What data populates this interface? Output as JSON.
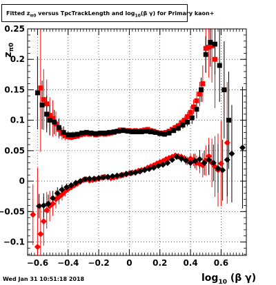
{
  "header": {
    "title_parts": [
      "Fitted z",
      "π0",
      " versus TpcTrackLength and log",
      "10",
      "(β γ) for Primary kaon+"
    ],
    "date": "Wed Jan 31 10:51:18 2018"
  },
  "chart_data": {
    "type": "scatter",
    "title": "Fitted zπ0 versus TpcTrackLength and log10(βγ) for Primary kaon+",
    "xlabel": "log10 (β γ)",
    "ylabel": "zπ0",
    "xlim": [
      -0.665,
      0.765
    ],
    "ylim": [
      -0.122,
      0.25
    ],
    "xticks": [
      -0.6,
      -0.4,
      -0.2,
      0,
      0.2,
      0.4,
      0.6
    ],
    "xtick_labels": [
      "−0.6",
      "−0.4",
      "−0.2",
      "0",
      "0.2",
      "0.4",
      "0.6"
    ],
    "yticks": [
      -0.1,
      -0.05,
      0,
      0.05,
      0.1,
      0.15,
      0.2,
      0.25
    ],
    "ytick_labels": [
      "−0.1",
      "−0.05",
      "0",
      "0.05",
      "0.1",
      "0.15",
      "0.2",
      "0.25"
    ],
    "grid": true,
    "colors": {
      "red": "#ff0000",
      "black": "#000000"
    },
    "series": [
      {
        "color": "red",
        "marker": "square",
        "points": [
          [
            -0.58,
            0.153,
            0.105
          ],
          [
            -0.56,
            0.134,
            0.05
          ],
          [
            -0.54,
            0.127,
            0.04
          ],
          [
            -0.52,
            0.108,
            0.03
          ],
          [
            -0.5,
            0.103,
            0.03
          ],
          [
            -0.48,
            0.094,
            0.02
          ],
          [
            -0.46,
            0.085,
            0.015
          ],
          [
            -0.44,
            0.078,
            0.01
          ],
          [
            -0.42,
            0.075,
            0.008
          ],
          [
            -0.4,
            0.073,
            0.006
          ],
          [
            -0.38,
            0.072,
            0.005
          ],
          [
            -0.36,
            0.073,
            0.004
          ],
          [
            -0.34,
            0.074,
            0.004
          ],
          [
            -0.32,
            0.076,
            0.004
          ],
          [
            -0.3,
            0.077,
            0.003
          ],
          [
            -0.28,
            0.078,
            0.003
          ],
          [
            -0.26,
            0.077,
            0.003
          ],
          [
            -0.24,
            0.078,
            0.003
          ],
          [
            -0.22,
            0.076,
            0.003
          ],
          [
            -0.2,
            0.077,
            0.003
          ],
          [
            -0.18,
            0.078,
            0.003
          ],
          [
            -0.16,
            0.077,
            0.003
          ],
          [
            -0.14,
            0.078,
            0.003
          ],
          [
            -0.12,
            0.079,
            0.003
          ],
          [
            -0.1,
            0.08,
            0.003
          ],
          [
            -0.08,
            0.082,
            0.003
          ],
          [
            -0.06,
            0.084,
            0.003
          ],
          [
            -0.04,
            0.084,
            0.003
          ],
          [
            -0.02,
            0.083,
            0.003
          ],
          [
            0.0,
            0.083,
            0.003
          ],
          [
            0.02,
            0.082,
            0.003
          ],
          [
            0.04,
            0.083,
            0.003
          ],
          [
            0.06,
            0.082,
            0.003
          ],
          [
            0.08,
            0.083,
            0.003
          ],
          [
            0.1,
            0.084,
            0.003
          ],
          [
            0.12,
            0.085,
            0.003
          ],
          [
            0.14,
            0.083,
            0.003
          ],
          [
            0.16,
            0.082,
            0.003
          ],
          [
            0.18,
            0.08,
            0.003
          ],
          [
            0.2,
            0.079,
            0.003
          ],
          [
            0.22,
            0.079,
            0.003
          ],
          [
            0.24,
            0.08,
            0.003
          ],
          [
            0.26,
            0.082,
            0.004
          ],
          [
            0.28,
            0.085,
            0.004
          ],
          [
            0.3,
            0.088,
            0.005
          ],
          [
            0.32,
            0.091,
            0.005
          ],
          [
            0.34,
            0.096,
            0.006
          ],
          [
            0.36,
            0.1,
            0.007
          ],
          [
            0.38,
            0.106,
            0.008
          ],
          [
            0.4,
            0.113,
            0.01
          ],
          [
            0.42,
            0.122,
            0.012
          ],
          [
            0.44,
            0.132,
            0.015
          ],
          [
            0.46,
            0.143,
            0.02
          ],
          [
            0.48,
            0.16,
            0.03
          ],
          [
            0.5,
            0.218,
            0.04
          ],
          [
            0.52,
            0.22,
            0.05
          ],
          [
            0.54,
            0.222,
            0.06
          ],
          [
            0.56,
            0.2,
            0.08
          ]
        ]
      },
      {
        "color": "black",
        "marker": "square",
        "points": [
          [
            -0.6,
            0.145,
            0.06
          ],
          [
            -0.57,
            0.125,
            0.04
          ],
          [
            -0.54,
            0.11,
            0.03
          ],
          [
            -0.52,
            0.1,
            0.025
          ],
          [
            -0.49,
            0.097,
            0.02
          ],
          [
            -0.46,
            0.088,
            0.015
          ],
          [
            -0.43,
            0.08,
            0.01
          ],
          [
            -0.4,
            0.076,
            0.006
          ],
          [
            -0.37,
            0.076,
            0.005
          ],
          [
            -0.34,
            0.077,
            0.004
          ],
          [
            -0.31,
            0.079,
            0.003
          ],
          [
            -0.28,
            0.08,
            0.003
          ],
          [
            -0.25,
            0.079,
            0.003
          ],
          [
            -0.22,
            0.078,
            0.003
          ],
          [
            -0.19,
            0.079,
            0.003
          ],
          [
            -0.16,
            0.079,
            0.003
          ],
          [
            -0.13,
            0.08,
            0.003
          ],
          [
            -0.1,
            0.081,
            0.003
          ],
          [
            -0.07,
            0.082,
            0.003
          ],
          [
            -0.04,
            0.083,
            0.003
          ],
          [
            -0.01,
            0.082,
            0.003
          ],
          [
            0.02,
            0.081,
            0.003
          ],
          [
            0.05,
            0.081,
            0.003
          ],
          [
            0.08,
            0.081,
            0.003
          ],
          [
            0.11,
            0.082,
            0.003
          ],
          [
            0.14,
            0.081,
            0.003
          ],
          [
            0.17,
            0.08,
            0.003
          ],
          [
            0.2,
            0.078,
            0.003
          ],
          [
            0.23,
            0.077,
            0.003
          ],
          [
            0.26,
            0.079,
            0.004
          ],
          [
            0.29,
            0.083,
            0.004
          ],
          [
            0.32,
            0.087,
            0.005
          ],
          [
            0.35,
            0.092,
            0.006
          ],
          [
            0.38,
            0.097,
            0.007
          ],
          [
            0.41,
            0.104,
            0.01
          ],
          [
            0.44,
            0.118,
            0.015
          ],
          [
            0.47,
            0.15,
            0.02
          ],
          [
            0.5,
            0.208,
            0.03
          ],
          [
            0.53,
            0.228,
            0.04
          ],
          [
            0.56,
            0.225,
            0.05
          ],
          [
            0.59,
            0.19,
            0.06
          ],
          [
            0.62,
            0.15,
            0.08
          ],
          [
            0.65,
            0.1,
            0.08
          ]
        ]
      },
      {
        "color": "red",
        "marker": "diamond",
        "points": [
          [
            -0.63,
            -0.055,
            0.05
          ],
          [
            -0.6,
            -0.108,
            0.13
          ],
          [
            -0.58,
            -0.087,
            0.05
          ],
          [
            -0.56,
            -0.066,
            0.04
          ],
          [
            -0.54,
            -0.048,
            0.03
          ],
          [
            -0.52,
            -0.041,
            0.025
          ],
          [
            -0.5,
            -0.037,
            0.02
          ],
          [
            -0.48,
            -0.03,
            0.015
          ],
          [
            -0.46,
            -0.026,
            0.012
          ],
          [
            -0.44,
            -0.022,
            0.01
          ],
          [
            -0.42,
            -0.017,
            0.008
          ],
          [
            -0.4,
            -0.013,
            0.006
          ],
          [
            -0.38,
            -0.01,
            0.005
          ],
          [
            -0.36,
            -0.007,
            0.004
          ],
          [
            -0.34,
            -0.004,
            0.004
          ],
          [
            -0.32,
            -0.001,
            0.004
          ],
          [
            -0.3,
            0.002,
            0.003
          ],
          [
            -0.28,
            0.003,
            0.003
          ],
          [
            -0.26,
            0.001,
            0.003
          ],
          [
            -0.24,
            0.002,
            0.003
          ],
          [
            -0.22,
            0.003,
            0.003
          ],
          [
            -0.2,
            0.004,
            0.003
          ],
          [
            -0.18,
            0.006,
            0.003
          ],
          [
            -0.16,
            0.007,
            0.003
          ],
          [
            -0.14,
            0.006,
            0.003
          ],
          [
            -0.12,
            0.005,
            0.003
          ],
          [
            -0.1,
            0.006,
            0.003
          ],
          [
            -0.08,
            0.007,
            0.003
          ],
          [
            -0.06,
            0.009,
            0.003
          ],
          [
            -0.04,
            0.01,
            0.003
          ],
          [
            -0.02,
            0.011,
            0.003
          ],
          [
            0.0,
            0.013,
            0.003
          ],
          [
            0.02,
            0.014,
            0.003
          ],
          [
            0.04,
            0.015,
            0.003
          ],
          [
            0.06,
            0.017,
            0.003
          ],
          [
            0.08,
            0.018,
            0.003
          ],
          [
            0.1,
            0.019,
            0.003
          ],
          [
            0.12,
            0.022,
            0.003
          ],
          [
            0.14,
            0.024,
            0.003
          ],
          [
            0.16,
            0.026,
            0.003
          ],
          [
            0.18,
            0.029,
            0.003
          ],
          [
            0.2,
            0.031,
            0.003
          ],
          [
            0.22,
            0.033,
            0.003
          ],
          [
            0.24,
            0.036,
            0.003
          ],
          [
            0.26,
            0.038,
            0.004
          ],
          [
            0.28,
            0.04,
            0.004
          ],
          [
            0.3,
            0.042,
            0.004
          ],
          [
            0.32,
            0.041,
            0.005
          ],
          [
            0.34,
            0.04,
            0.005
          ],
          [
            0.36,
            0.037,
            0.006
          ],
          [
            0.38,
            0.033,
            0.007
          ],
          [
            0.4,
            0.037,
            0.008
          ],
          [
            0.42,
            0.035,
            0.01
          ],
          [
            0.44,
            0.03,
            0.012
          ],
          [
            0.46,
            0.028,
            0.015
          ],
          [
            0.48,
            0.026,
            0.02
          ],
          [
            0.5,
            0.034,
            0.025
          ],
          [
            0.52,
            0.041,
            0.03
          ],
          [
            0.54,
            0.03,
            0.04
          ],
          [
            0.56,
            0.024,
            0.05
          ],
          [
            0.58,
            0.018,
            0.06
          ],
          [
            0.6,
            0.029,
            0.07
          ],
          [
            0.64,
            0.063,
            0.1
          ]
        ]
      },
      {
        "color": "black",
        "marker": "diamond",
        "points": [
          [
            -0.59,
            -0.041,
            0.02
          ],
          [
            -0.56,
            -0.04,
            0.02
          ],
          [
            -0.53,
            -0.037,
            0.015
          ],
          [
            -0.5,
            -0.028,
            0.012
          ],
          [
            -0.47,
            -0.02,
            0.01
          ],
          [
            -0.44,
            -0.014,
            0.008
          ],
          [
            -0.41,
            -0.01,
            0.006
          ],
          [
            -0.38,
            -0.007,
            0.005
          ],
          [
            -0.35,
            -0.003,
            0.004
          ],
          [
            -0.32,
            0.0,
            0.004
          ],
          [
            -0.29,
            0.003,
            0.003
          ],
          [
            -0.26,
            0.004,
            0.003
          ],
          [
            -0.23,
            0.004,
            0.003
          ],
          [
            -0.2,
            0.005,
            0.003
          ],
          [
            -0.17,
            0.006,
            0.003
          ],
          [
            -0.14,
            0.007,
            0.003
          ],
          [
            -0.11,
            0.008,
            0.003
          ],
          [
            -0.08,
            0.009,
            0.003
          ],
          [
            -0.05,
            0.01,
            0.003
          ],
          [
            -0.02,
            0.012,
            0.003
          ],
          [
            0.01,
            0.013,
            0.003
          ],
          [
            0.04,
            0.014,
            0.003
          ],
          [
            0.07,
            0.016,
            0.003
          ],
          [
            0.1,
            0.018,
            0.003
          ],
          [
            0.13,
            0.02,
            0.003
          ],
          [
            0.16,
            0.022,
            0.003
          ],
          [
            0.19,
            0.025,
            0.003
          ],
          [
            0.22,
            0.027,
            0.003
          ],
          [
            0.25,
            0.03,
            0.004
          ],
          [
            0.28,
            0.035,
            0.004
          ],
          [
            0.31,
            0.04,
            0.005
          ],
          [
            0.34,
            0.037,
            0.006
          ],
          [
            0.37,
            0.034,
            0.007
          ],
          [
            0.4,
            0.03,
            0.009
          ],
          [
            0.43,
            0.033,
            0.012
          ],
          [
            0.46,
            0.036,
            0.015
          ],
          [
            0.49,
            0.03,
            0.02
          ],
          [
            0.52,
            0.035,
            0.025
          ],
          [
            0.55,
            0.03,
            0.03
          ],
          [
            0.58,
            0.021,
            0.04
          ],
          [
            0.61,
            0.018,
            0.05
          ],
          [
            0.64,
            0.035,
            0.06
          ],
          [
            0.67,
            0.045,
            0.08
          ],
          [
            0.74,
            0.055,
            0.1
          ]
        ]
      }
    ]
  }
}
